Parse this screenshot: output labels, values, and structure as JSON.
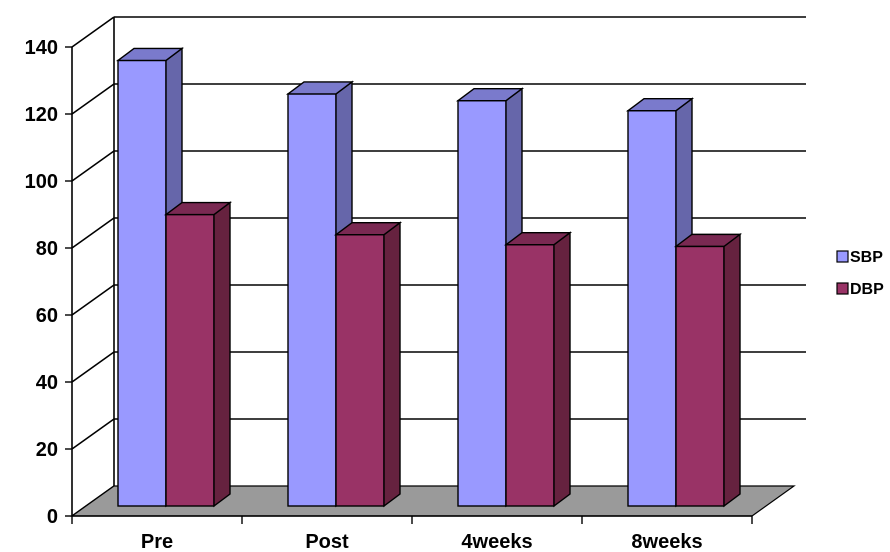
{
  "chart_data": {
    "type": "bar",
    "categories": [
      "Pre",
      "Post",
      "4weeks",
      "8weeks"
    ],
    "series": [
      {
        "name": "SBP",
        "values": [
          133,
          123,
          121,
          118
        ]
      },
      {
        "name": "DBP",
        "values": [
          87,
          81,
          78,
          77.5
        ]
      }
    ],
    "title": "",
    "xlabel": "",
    "ylabel": "",
    "ylim": [
      0,
      140
    ],
    "yticks": [
      0,
      20,
      40,
      60,
      80,
      100,
      120,
      140
    ],
    "grid": true,
    "legend_position": "right",
    "style": "3d-column"
  },
  "colors": {
    "SBP": {
      "front": "#9999ff",
      "side": "#6666aa",
      "top": "#7a7acc"
    },
    "DBP": {
      "front": "#993366",
      "side": "#66223f",
      "top": "#7a2952"
    },
    "floor": "#9a9a9a",
    "grid": "#000000"
  }
}
